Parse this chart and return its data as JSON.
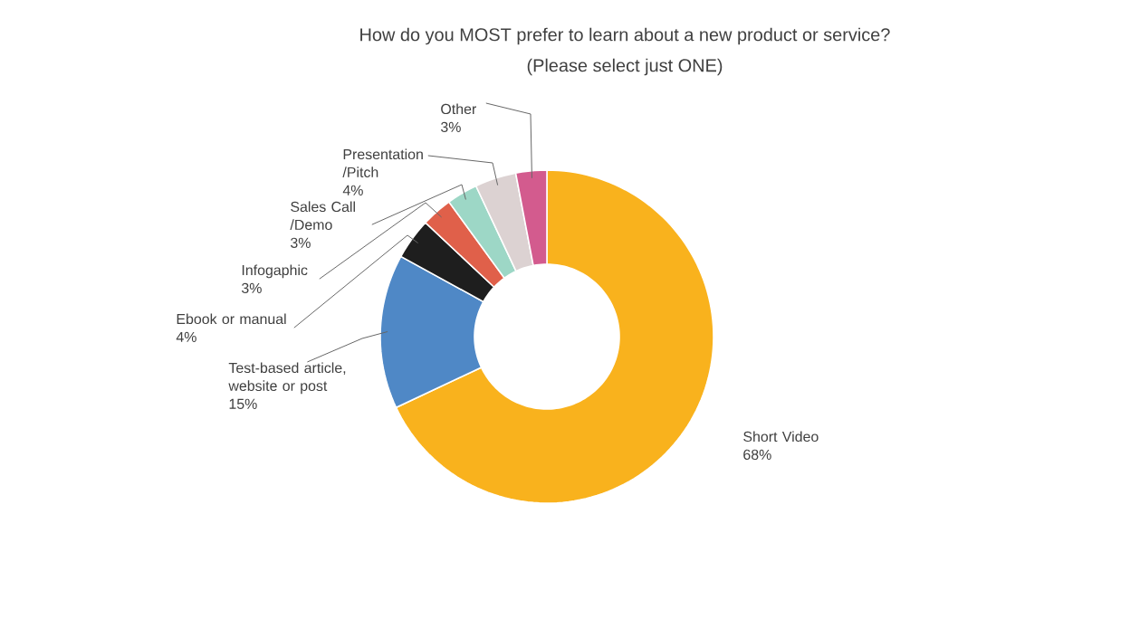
{
  "chart_data": {
    "type": "donut",
    "title": "How do you MOST prefer to learn about a new product or service?",
    "subtitle": "(Please select just ONE)",
    "categories": [
      "Short Video",
      "Test-based article, website or post",
      "Ebook or manual",
      "Infogaphic",
      "Sales Call /Demo",
      "Presentation /Pitch",
      "Other"
    ],
    "values": [
      68,
      15,
      4,
      3,
      3,
      4,
      3
    ],
    "value_labels": [
      "68%",
      "15%",
      "4%",
      "3%",
      "3%",
      "4%",
      "3%"
    ],
    "colors": [
      "#f9b21d",
      "#4f88c6",
      "#1e1e1e",
      "#e0604a",
      "#9dd7c6",
      "#dcd2d2",
      "#d35b8e"
    ]
  }
}
